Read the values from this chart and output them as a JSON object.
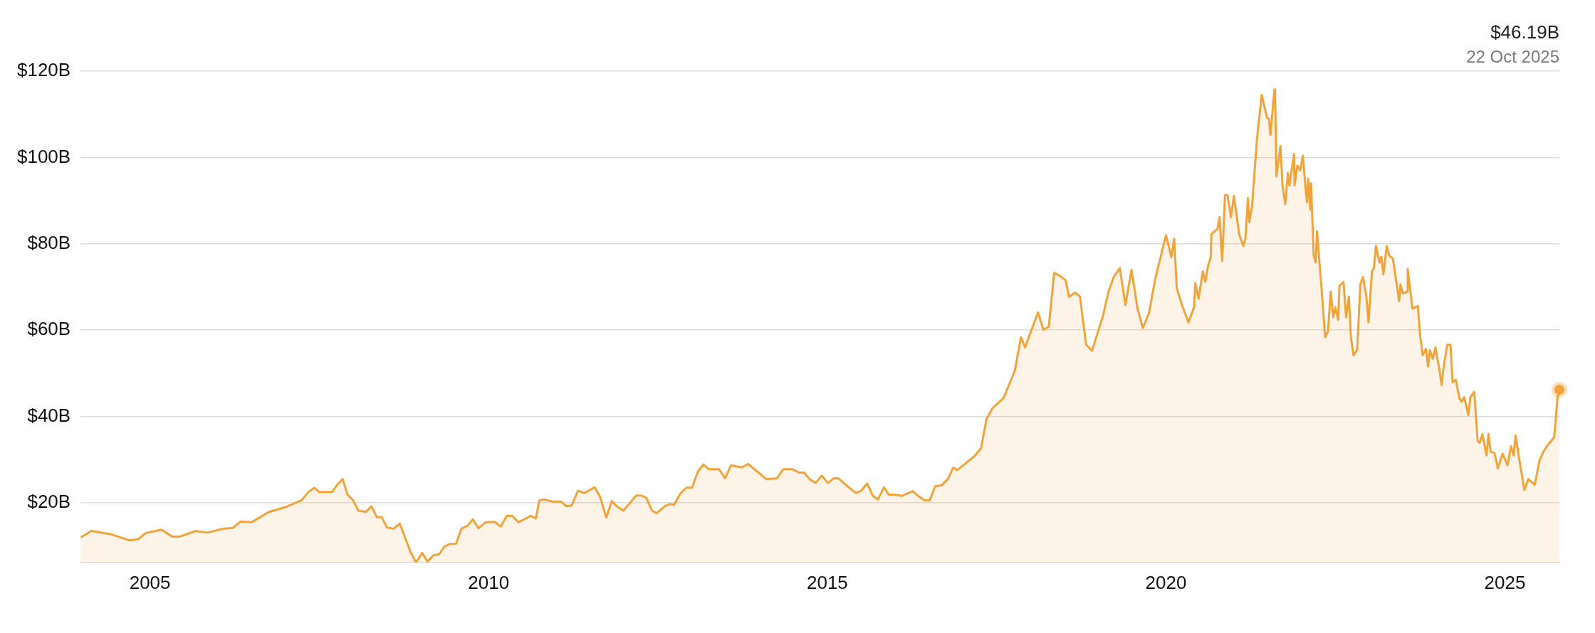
{
  "chart_data": {
    "type": "area",
    "x": [
      "2003-12-24",
      "2004-02-21",
      "2004-06-07",
      "2004-09-13",
      "2004-10-30",
      "2004-12-09",
      "2005-03-04",
      "2005-05-01",
      "2005-06-11",
      "2005-09-05",
      "2005-11-10",
      "2006-01-26",
      "2006-03-25",
      "2006-05-05",
      "2006-07-02",
      "2006-10-05",
      "2007-01-08",
      "2007-03-29",
      "2007-05-05",
      "2007-06-07",
      "2007-07-02",
      "2007-09-09",
      "2007-10-08",
      "2007-11-06",
      "2007-12-02",
      "2008-01-01",
      "2008-01-30",
      "2008-03-11",
      "2008-04-09",
      "2008-05-08",
      "2008-06-03",
      "2008-07-02",
      "2008-08-07",
      "2008-09-09",
      "2008-11-06",
      "2008-12-05",
      "2009-01-08",
      "2009-02-06",
      "2009-03-07",
      "2009-04-09",
      "2009-05-08",
      "2009-06-07",
      "2009-07-09",
      "2009-08-07",
      "2009-09-09",
      "2009-10-08",
      "2009-11-06",
      "2009-12-16",
      "2010-02-03",
      "2010-03-07",
      "2010-04-09",
      "2010-05-08",
      "2010-06-11",
      "2010-08-15",
      "2010-09-13",
      "2010-10-01",
      "2010-10-30",
      "2010-12-09",
      "2011-01-26",
      "2011-02-25",
      "2011-03-25",
      "2011-04-27",
      "2011-05-31",
      "2011-07-27",
      "2011-08-25",
      "2011-09-27",
      "2011-10-27",
      "2011-11-24",
      "2011-12-28",
      "2012-03-07",
      "2012-04-05",
      "2012-05-01",
      "2012-05-31",
      "2012-06-25",
      "2012-08-07",
      "2012-09-02",
      "2012-09-27",
      "2012-10-30",
      "2012-12-02",
      "2013-01-01",
      "2013-02-03",
      "2013-03-04",
      "2013-04-01",
      "2013-05-27",
      "2013-06-29",
      "2013-07-31",
      "2013-09-27",
      "2013-10-30",
      "2014-01-01",
      "2014-02-06",
      "2014-04-05",
      "2014-05-08",
      "2014-06-29",
      "2014-07-31",
      "2014-08-29",
      "2014-09-27",
      "2014-10-30",
      "2014-12-02",
      "2015-01-04",
      "2015-02-06",
      "2015-02-28",
      "2015-04-27",
      "2015-06-03",
      "2015-07-02",
      "2015-08-04",
      "2015-09-02",
      "2015-10-01",
      "2015-11-03",
      "2015-11-28",
      "2016-01-04",
      "2016-02-06",
      "2016-04-05",
      "2016-05-05",
      "2016-06-07",
      "2016-07-06",
      "2016-08-04",
      "2016-09-09",
      "2016-10-12",
      "2016-11-10",
      "2016-12-02",
      "2017-03-04",
      "2017-04-09",
      "2017-05-08",
      "2017-06-11",
      "2017-08-07",
      "2017-09-09",
      "2017-10-08",
      "2017-11-10",
      "2017-12-02",
      "2018-02-10",
      "2018-03-11",
      "2018-04-09",
      "2018-05-08",
      "2018-06-11",
      "2018-07-09",
      "2018-07-27",
      "2018-08-29",
      "2018-09-24",
      "2018-10-27",
      "2018-11-28",
      "2019-01-26",
      "2019-02-25",
      "2019-03-25",
      "2019-04-27",
      "2019-05-27",
      "2019-06-29",
      "2019-07-31",
      "2019-08-29",
      "2019-10-01",
      "2019-11-03",
      "2020-01-01",
      "2020-01-30",
      "2020-02-14",
      "2020-02-28",
      "2020-03-29",
      "2020-05-01",
      "2020-05-31",
      "2020-06-07",
      "2020-06-25",
      "2020-07-17",
      "2020-07-31",
      "2020-08-15",
      "2020-08-29",
      "2020-09-02",
      "2020-10-05",
      "2020-10-16",
      "2020-10-30",
      "2020-11-14",
      "2020-11-28",
      "2020-12-16",
      "2021-01-01",
      "2021-01-30",
      "2021-02-21",
      "2021-03-04",
      "2021-03-18",
      "2021-03-25",
      "2021-04-09",
      "2021-05-05",
      "2021-05-31",
      "2021-06-29",
      "2021-07-09",
      "2021-07-17",
      "2021-08-07",
      "2021-08-11",
      "2021-08-18",
      "2021-09-09",
      "2021-09-20",
      "2021-10-05",
      "2021-10-19",
      "2021-10-27",
      "2021-11-21",
      "2021-11-24",
      "2021-12-09",
      "2021-12-24",
      "2022-01-08",
      "2022-01-19",
      "2022-01-30",
      "2022-02-06",
      "2022-02-17",
      "2022-02-21",
      "2022-03-07",
      "2022-03-18",
      "2022-03-25",
      "2022-04-16",
      "2022-05-08",
      "2022-05-23",
      "2022-06-07",
      "2022-06-21",
      "2022-07-02",
      "2022-07-17",
      "2022-07-24",
      "2022-08-15",
      "2022-08-29",
      "2022-09-13",
      "2022-09-24",
      "2022-10-08",
      "2022-10-27",
      "2022-11-14",
      "2022-11-28",
      "2022-12-16",
      "2022-12-28",
      "2023-01-15",
      "2023-01-26",
      "2023-02-06",
      "2023-02-25",
      "2023-03-07",
      "2023-03-18",
      "2023-04-05",
      "2023-04-20",
      "2023-05-08",
      "2023-05-27",
      "2023-06-11",
      "2023-06-18",
      "2023-07-02",
      "2023-07-24",
      "2023-07-27",
      "2023-08-22",
      "2023-09-20",
      "2023-10-01",
      "2023-10-16",
      "2023-11-03",
      "2023-11-14",
      "2023-11-24",
      "2023-12-09",
      "2023-12-24",
      "2024-01-15",
      "2024-01-26",
      "2024-02-06",
      "2024-02-25",
      "2024-03-14",
      "2024-03-25",
      "2024-04-12",
      "2024-05-01",
      "2024-05-12",
      "2024-05-27",
      "2024-06-18",
      "2024-06-29",
      "2024-07-20",
      "2024-08-07",
      "2024-08-18",
      "2024-09-02",
      "2024-09-24",
      "2024-10-05",
      "2024-10-16",
      "2024-11-06",
      "2024-11-24",
      "2024-12-20",
      "2025-01-15",
      "2025-02-03",
      "2025-02-17",
      "2025-02-28",
      "2025-03-18",
      "2025-04-16",
      "2025-05-08",
      "2025-06-11",
      "2025-07-06",
      "2025-07-27",
      "2025-08-15",
      "2025-09-24",
      "2025-10-12",
      "2025-10-22"
    ],
    "series": [
      {
        "color": "#f2a33a",
        "values": [
          12.0,
          13.5,
          12.7,
          11.3,
          11.6,
          13.0,
          13.8,
          12.2,
          12.2,
          13.5,
          13.1,
          14.0,
          14.2,
          15.7,
          15.5,
          17.9,
          19.1,
          20.6,
          22.5,
          23.5,
          22.5,
          22.5,
          24.2,
          25.5,
          21.9,
          20.6,
          18.2,
          17.9,
          19.2,
          16.7,
          16.7,
          14.3,
          14.0,
          15.2,
          8.6,
          6.2,
          8.4,
          6.4,
          7.8,
          8.1,
          9.9,
          10.5,
          10.5,
          14.0,
          14.7,
          16.2,
          14.1,
          15.5,
          15.6,
          14.5,
          17.0,
          17.0,
          15.5,
          17.0,
          16.4,
          20.6,
          20.8,
          20.3,
          20.3,
          19.2,
          19.4,
          22.8,
          22.3,
          23.6,
          21.4,
          16.6,
          20.4,
          19.2,
          18.2,
          21.7,
          21.7,
          21.1,
          18.2,
          17.6,
          19.2,
          19.7,
          19.6,
          22.1,
          23.5,
          23.5,
          27.3,
          28.9,
          27.8,
          27.8,
          25.7,
          28.7,
          28.2,
          29.0,
          26.8,
          25.5,
          25.7,
          27.8,
          27.8,
          27.0,
          27.0,
          25.5,
          24.6,
          26.3,
          24.6,
          25.7,
          25.7,
          23.6,
          22.3,
          22.8,
          24.5,
          21.7,
          20.8,
          23.6,
          21.9,
          21.9,
          21.6,
          22.7,
          21.6,
          20.6,
          20.6,
          23.8,
          24.1,
          25.5,
          28.2,
          27.6,
          30.8,
          32.7,
          39.4,
          42.0,
          44.2,
          47.6,
          50.6,
          58.4,
          56.0,
          64.1,
          60.1,
          60.8,
          73.3,
          72.5,
          71.5,
          67.7,
          68.7,
          67.8,
          56.7,
          55.2,
          63.3,
          68.9,
          72.3,
          74.4,
          65.8,
          74.0,
          65.1,
          60.5,
          63.9,
          71.7,
          82.0,
          76.9,
          81.2,
          69.8,
          65.6,
          61.8,
          65.3,
          70.9,
          67.3,
          73.6,
          71.2,
          74.9,
          76.9,
          82.2,
          83.5,
          86.2,
          76.0,
          91.3,
          91.3,
          86.2,
          91.1,
          82.2,
          79.5,
          81.2,
          90.6,
          85.0,
          88.8,
          104.1,
          114.5,
          109.2,
          108.9,
          105.2,
          115.6,
          115.8,
          95.6,
          102.7,
          93.5,
          89.2,
          96.4,
          93.5,
          100.8,
          93.5,
          98.1,
          97.0,
          100.4,
          94.7,
          89.6,
          95.1,
          87.9,
          94.0,
          77.4,
          75.7,
          82.9,
          71.1,
          58.4,
          59.6,
          68.9,
          63.0,
          65.3,
          62.4,
          70.2,
          71.2,
          63.0,
          67.8,
          58.4,
          54.2,
          55.4,
          70.6,
          72.3,
          67.8,
          61.8,
          73.6,
          74.4,
          79.5,
          75.7,
          77.0,
          72.9,
          79.5,
          77.2,
          76.6,
          71.2,
          66.7,
          70.6,
          68.5,
          68.9,
          74.2,
          65.0,
          65.6,
          59.2,
          54.2,
          55.7,
          51.6,
          55.4,
          53.3,
          56.0,
          50.6,
          47.3,
          51.6,
          56.6,
          56.6,
          47.9,
          48.5,
          44.2,
          43.4,
          44.5,
          40.3,
          44.5,
          45.7,
          34.3,
          33.9,
          35.9,
          31.0,
          36.0,
          31.8,
          31.6,
          28.0,
          31.4,
          28.7,
          33.1,
          31.0,
          35.6,
          30.5,
          23.0,
          25.5,
          24.2,
          29.7,
          31.8,
          33.1,
          35.2,
          44.5,
          46.19
        ]
      }
    ],
    "xlim": [
      "2003-12-24",
      "2025-10-22"
    ],
    "xticks": [
      "2005",
      "2010",
      "2015",
      "2020",
      "2025"
    ],
    "ylim": [
      6.2,
      120
    ],
    "yticks": [
      {
        "value": 20,
        "label": "$20B"
      },
      {
        "value": 40,
        "label": "$40B"
      },
      {
        "value": 60,
        "label": "$60B"
      },
      {
        "value": 80,
        "label": "$80B"
      },
      {
        "value": 100,
        "label": "$100B"
      },
      {
        "value": 120,
        "label": "$120B"
      }
    ],
    "grid": "y",
    "legend": false,
    "annotations": [
      "$46.19B",
      "22 Oct 2025"
    ]
  }
}
